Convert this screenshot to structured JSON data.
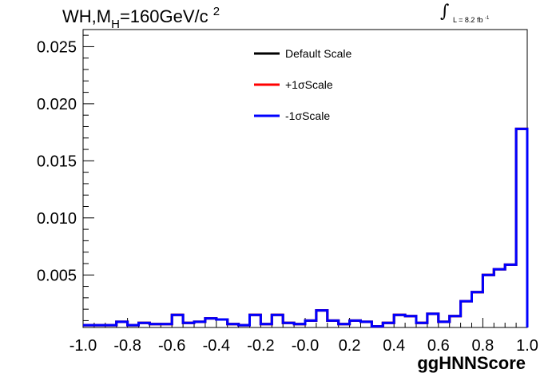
{
  "chart_data": {
    "type": "histogram",
    "title": "WH,M",
    "title_sub": "H",
    "title_rest": "=160GeV/c",
    "title_sup": "2",
    "lumi_text": "L = 8.2 fb",
    "lumi_sup": "-1",
    "xlabel": "ggHNNScore",
    "xlim": [
      -1.0,
      1.0
    ],
    "ylim": [
      0.0004,
      0.0265
    ],
    "xticks": [
      "-1.0",
      "-0.8",
      "-0.6",
      "-0.4",
      "-0.2",
      "-0.0",
      "0.2",
      "0.4",
      "0.6",
      "0.8",
      "1.0"
    ],
    "xtick_values": [
      -1.0,
      -0.8,
      -0.6,
      -0.4,
      -0.2,
      0.0,
      0.2,
      0.4,
      0.6,
      0.8,
      1.0
    ],
    "yticks": [
      "0.005",
      "0.010",
      "0.015",
      "0.020",
      "0.025"
    ],
    "ytick_values": [
      0.005,
      0.01,
      0.015,
      0.02,
      0.025
    ],
    "bin_edges": [
      -1.0,
      -0.95,
      -0.9,
      -0.85,
      -0.8,
      -0.75,
      -0.7,
      -0.65,
      -0.6,
      -0.55,
      -0.5,
      -0.45,
      -0.4,
      -0.35,
      -0.3,
      -0.25,
      -0.2,
      -0.15,
      -0.1,
      -0.05,
      0.0,
      0.05,
      0.1,
      0.15,
      0.2,
      0.25,
      0.3,
      0.35,
      0.4,
      0.45,
      0.5,
      0.55,
      0.6,
      0.65,
      0.7,
      0.75,
      0.8,
      0.85,
      0.9,
      0.95,
      1.0
    ],
    "legend": [
      {
        "label": "Default Scale",
        "color": "#000000"
      },
      {
        "label": "+1σScale",
        "color": "#ff0000"
      },
      {
        "label": "-1σScale",
        "color": "#0000ff"
      }
    ],
    "series": [
      {
        "name": "Default Scale",
        "color": "#000000",
        "values": [
          0.0006,
          0.0006,
          0.0006,
          0.0009,
          0.0006,
          0.0008,
          0.0007,
          0.0007,
          0.0015,
          0.0008,
          0.0009,
          0.0012,
          0.0011,
          0.0007,
          0.0006,
          0.0015,
          0.0007,
          0.0015,
          0.0008,
          0.0007,
          0.001,
          0.0019,
          0.001,
          0.0007,
          0.001,
          0.0009,
          0.0005,
          0.0008,
          0.0015,
          0.0014,
          0.0008,
          0.0016,
          0.0009,
          0.0014,
          0.0027,
          0.0035,
          0.005,
          0.0055,
          0.0059,
          0.0178
        ]
      },
      {
        "name": "+1σScale",
        "color": "#ff0000",
        "values": [
          0.0006,
          0.0006,
          0.0006,
          0.0009,
          0.0006,
          0.0008,
          0.0007,
          0.0007,
          0.0015,
          0.0008,
          0.0009,
          0.0012,
          0.0011,
          0.0007,
          0.0006,
          0.0015,
          0.0007,
          0.0015,
          0.0008,
          0.0007,
          0.001,
          0.0019,
          0.001,
          0.0007,
          0.001,
          0.0009,
          0.0005,
          0.0008,
          0.0015,
          0.0014,
          0.0008,
          0.0016,
          0.0009,
          0.0014,
          0.0027,
          0.0035,
          0.005,
          0.0055,
          0.0059,
          0.0178
        ]
      },
      {
        "name": "-1σScale",
        "color": "#0000ff",
        "values": [
          0.0006,
          0.0006,
          0.0006,
          0.0009,
          0.0006,
          0.0008,
          0.0007,
          0.0007,
          0.0015,
          0.0008,
          0.0009,
          0.0012,
          0.0011,
          0.0007,
          0.0006,
          0.0015,
          0.0007,
          0.0015,
          0.0008,
          0.0007,
          0.001,
          0.0019,
          0.001,
          0.0007,
          0.001,
          0.0009,
          0.0005,
          0.0008,
          0.0015,
          0.0014,
          0.0008,
          0.0016,
          0.0009,
          0.0014,
          0.0027,
          0.0035,
          0.005,
          0.0055,
          0.0059,
          0.0178
        ]
      }
    ]
  }
}
